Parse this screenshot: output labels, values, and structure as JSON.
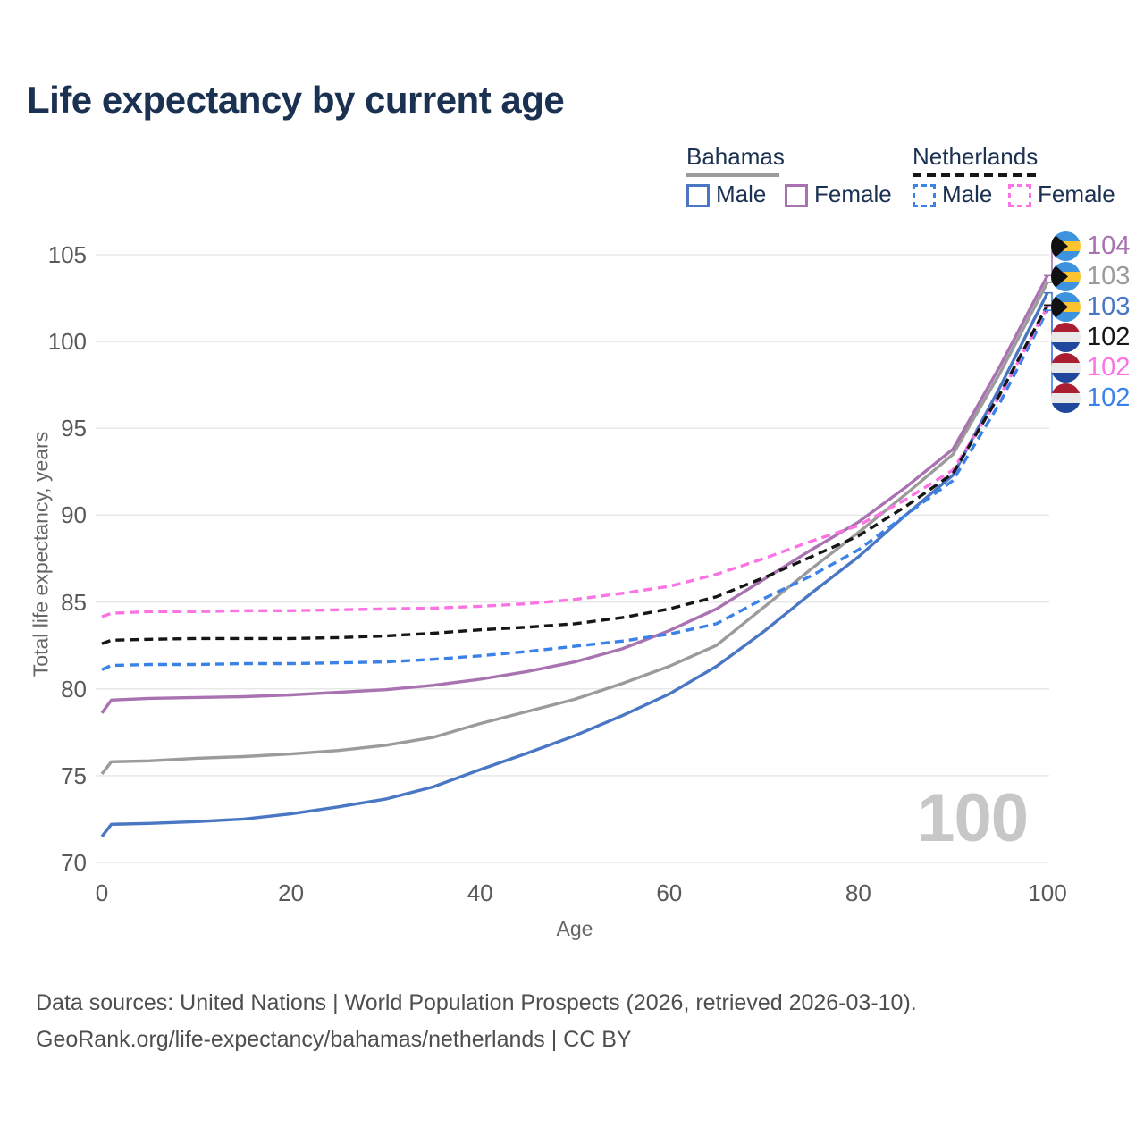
{
  "title": "Life expectancy by current age",
  "legend": {
    "groups": [
      {
        "country": "Bahamas",
        "style": "solid",
        "underline_color": "#9b9b9b",
        "items": [
          {
            "label": "Male",
            "color": "#4a77c4"
          },
          {
            "label": "Female",
            "color": "#a873b0"
          }
        ]
      },
      {
        "country": "Netherlands",
        "style": "dashed",
        "underline_color": "#161616",
        "items": [
          {
            "label": "Male",
            "color": "#3b82e8"
          },
          {
            "label": "Female",
            "color": "#fc74e4"
          }
        ]
      }
    ]
  },
  "watermark": "100",
  "footer": {
    "line1": "Data sources: United Nations | World Population Prospects (2026, retrieved 2026-03-10).",
    "line2": "GeoRank.org/life-expectancy/bahamas/netherlands | CC BY"
  },
  "colors": {
    "title_text": "#1b3151",
    "axis_text": "#595959",
    "gridline": "#e8e8e8",
    "watermark": "#c7c7c7"
  },
  "chart_data": {
    "type": "line",
    "title": "Life expectancy by current age",
    "xlabel": "Age",
    "ylabel": "Total life expectancy, years",
    "xlim": [
      0,
      100
    ],
    "ylim": [
      70,
      105
    ],
    "xticks": [
      0,
      20,
      40,
      60,
      80,
      100
    ],
    "yticks": [
      70,
      75,
      80,
      85,
      90,
      95,
      100,
      105
    ],
    "grid": "horizontal-only",
    "legend_position": "top-right",
    "ages": [
      0,
      1,
      5,
      10,
      15,
      20,
      25,
      30,
      35,
      40,
      45,
      50,
      55,
      60,
      65,
      70,
      75,
      80,
      85,
      90,
      95,
      100
    ],
    "series": [
      {
        "name": "Bahamas Both sexes",
        "country": "Bahamas",
        "sex": "Both",
        "flag": "bahamas",
        "color": "#9b9b9b",
        "dash": "solid",
        "end_label": "103",
        "values": [
          75.1,
          75.8,
          75.85,
          76.0,
          76.1,
          76.25,
          76.45,
          76.75,
          77.2,
          78.0,
          78.7,
          79.4,
          80.3,
          81.3,
          82.5,
          84.7,
          86.9,
          89.0,
          91.2,
          93.5,
          98.2,
          103.4
        ]
      },
      {
        "name": "Bahamas Male",
        "country": "Bahamas",
        "sex": "Male",
        "flag": "bahamas",
        "color": "#4a77c4",
        "dash": "solid",
        "end_label": "103",
        "values": [
          71.5,
          72.2,
          72.25,
          72.35,
          72.5,
          72.8,
          73.2,
          73.65,
          74.35,
          75.35,
          76.3,
          77.3,
          78.45,
          79.7,
          81.3,
          83.3,
          85.5,
          87.6,
          90.0,
          92.3,
          97.4,
          102.8
        ]
      },
      {
        "name": "Bahamas Female",
        "country": "Bahamas",
        "sex": "Female",
        "flag": "bahamas",
        "color": "#a873b0",
        "dash": "solid",
        "end_label": "104",
        "values": [
          78.6,
          79.35,
          79.45,
          79.5,
          79.55,
          79.65,
          79.8,
          79.95,
          80.2,
          80.55,
          81.0,
          81.55,
          82.3,
          83.35,
          84.6,
          86.3,
          88.0,
          89.6,
          91.6,
          93.8,
          98.6,
          103.8
        ]
      },
      {
        "name": "Netherlands Male",
        "country": "Netherlands",
        "sex": "Male",
        "flag": "netherlands",
        "color": "#3b82e8",
        "dash": "dashed",
        "end_label": "102",
        "values": [
          81.1,
          81.35,
          81.4,
          81.4,
          81.45,
          81.45,
          81.5,
          81.55,
          81.7,
          81.9,
          82.15,
          82.45,
          82.75,
          83.15,
          83.75,
          85.2,
          86.5,
          88.0,
          90.0,
          92.0,
          96.5,
          101.8
        ]
      },
      {
        "name": "Netherlands Female",
        "country": "Netherlands",
        "sex": "Female",
        "flag": "netherlands",
        "color": "#fc74e4",
        "dash": "dashed",
        "end_label": "102",
        "values": [
          84.15,
          84.35,
          84.45,
          84.45,
          84.5,
          84.5,
          84.55,
          84.6,
          84.65,
          84.75,
          84.9,
          85.15,
          85.5,
          85.9,
          86.6,
          87.5,
          88.5,
          89.4,
          90.9,
          92.6,
          96.9,
          102.0
        ]
      },
      {
        "name": "Netherlands Both sexes",
        "country": "Netherlands",
        "sex": "Both",
        "flag": "netherlands",
        "color": "#161616",
        "dash": "dashed",
        "end_label": "102",
        "values": [
          82.6,
          82.8,
          82.85,
          82.9,
          82.9,
          82.9,
          82.95,
          83.05,
          83.2,
          83.4,
          83.55,
          83.75,
          84.1,
          84.6,
          85.3,
          86.4,
          87.6,
          88.8,
          90.5,
          92.4,
          97.0,
          102.1
        ]
      }
    ]
  }
}
